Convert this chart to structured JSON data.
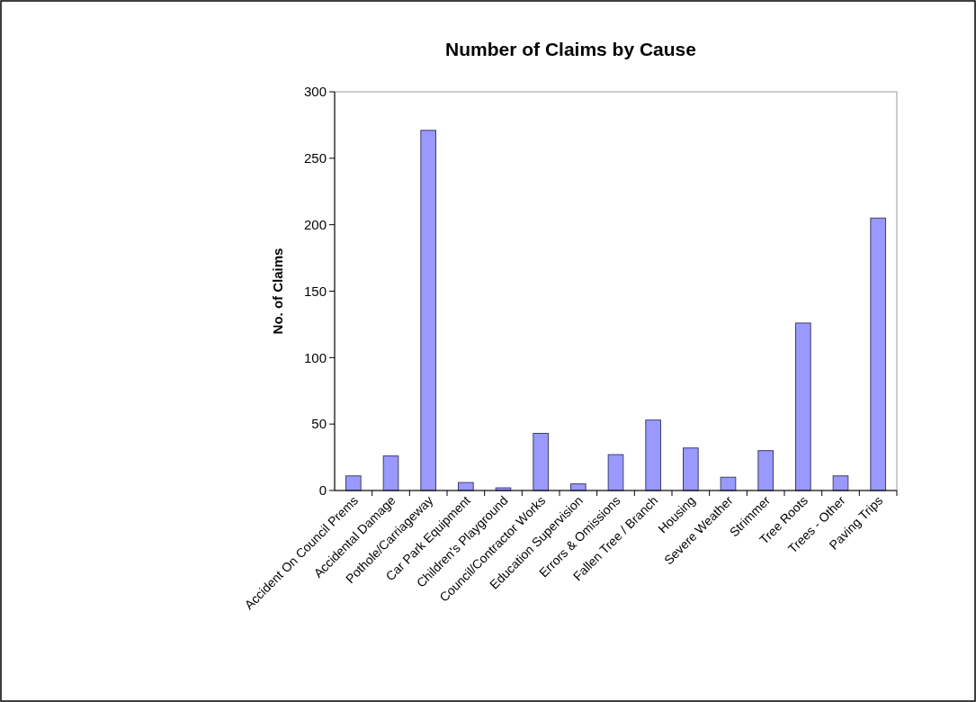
{
  "chart_data": {
    "type": "bar",
    "title": "Number of Claims by Cause",
    "ylabel": "No. of Claims",
    "categories": [
      "Accident On Council Prems",
      "Accidental Damage",
      "Pothole/Carriageway",
      "Car Park Equipment",
      "Children's Playground",
      "Council/Contractor Works",
      "Education Supervision",
      "Errors & Omissions",
      "Fallen Tree / Branch",
      "Housing",
      "Severe Weather",
      "Strimmer",
      "Tree Roots",
      "Trees - Other",
      "Paving Trips"
    ],
    "values": [
      11,
      26,
      271,
      6,
      2,
      43,
      5,
      27,
      53,
      32,
      10,
      30,
      126,
      11,
      205
    ],
    "color": "#9999ff",
    "ylim": [
      0,
      300
    ],
    "yticks": [
      0,
      50,
      100,
      150,
      200,
      250,
      300
    ],
    "grid": false
  }
}
